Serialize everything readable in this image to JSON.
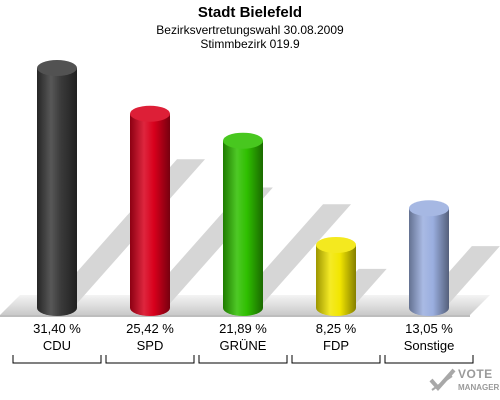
{
  "header": {
    "title": "Stadt Bielefeld",
    "subtitle1": "Bezirksvertretungswahl 30.08.2009",
    "subtitle2": "Stimmbezirk 019.9"
  },
  "chart_data": {
    "type": "bar",
    "categories": [
      "CDU",
      "SPD",
      "GRÜNE",
      "FDP",
      "Sonstige"
    ],
    "values": [
      31.4,
      25.42,
      21.89,
      8.25,
      13.05
    ],
    "value_labels": [
      "31,40 %",
      "25,42 %",
      "21,89 %",
      "8,25 %",
      "13,05 %"
    ],
    "colors": [
      "#3a3a3a",
      "#d8001c",
      "#2fbf00",
      "#f2e600",
      "#9aaedf"
    ],
    "ylim": [
      0,
      31.4
    ],
    "grid": false
  },
  "logo": {
    "line1": "VOTE",
    "line2": "MANAGER"
  }
}
